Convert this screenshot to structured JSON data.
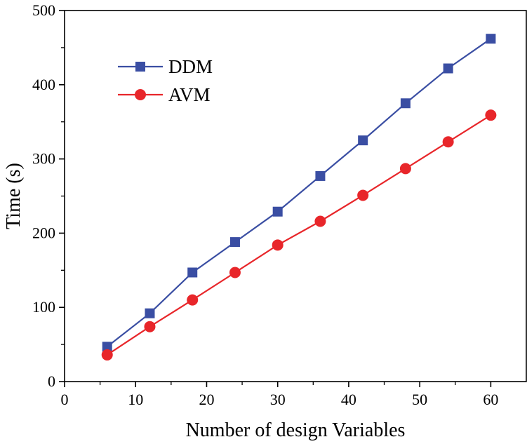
{
  "chart_data": {
    "type": "line",
    "title": "",
    "xlabel": "Number of design Variables",
    "ylabel": "Time (s)",
    "xlim": [
      0,
      65
    ],
    "ylim": [
      0,
      500
    ],
    "xticks": [
      0,
      10,
      20,
      30,
      40,
      50,
      60
    ],
    "yticks": [
      0,
      100,
      200,
      300,
      400,
      500
    ],
    "x": [
      6,
      12,
      18,
      24,
      30,
      36,
      42,
      48,
      54,
      60
    ],
    "series": [
      {
        "name": "DDM",
        "color": "#3a4ea3",
        "marker": "square",
        "values": [
          47,
          92,
          147,
          188,
          229,
          277,
          325,
          375,
          422,
          462
        ]
      },
      {
        "name": "AVM",
        "color": "#e8262a",
        "marker": "circle",
        "values": [
          36,
          74,
          110,
          147,
          184,
          216,
          251,
          287,
          323,
          359
        ]
      }
    ],
    "legend_position": "top-left",
    "grid": false
  }
}
